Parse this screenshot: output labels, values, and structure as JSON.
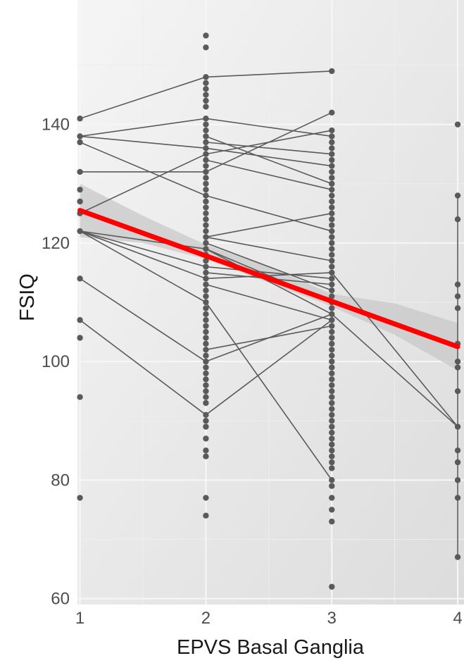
{
  "chart_data": {
    "type": "scatter",
    "title": "",
    "xlabel": "EPVS Basal Ganglia",
    "ylabel": "FSIQ",
    "xlim": [
      0.98,
      4.05
    ],
    "ylim": [
      59,
      161
    ],
    "x_ticks": [
      1,
      2,
      3,
      4
    ],
    "y_ticks": [
      60,
      80,
      100,
      120,
      140
    ],
    "grid": true,
    "legend": "none",
    "colors": {
      "panel_light": "#f4f4f4",
      "panel_dark": "#dedede",
      "grid_major": "#f7f7f7",
      "grid_minor": "#eeeeee",
      "points": "#5a5a5a",
      "paths": "#5a5a5a",
      "fit_line": "#ff0000",
      "ci_band": "#c8c8c8"
    },
    "points": [
      {
        "x": 1,
        "y": 141
      },
      {
        "x": 1,
        "y": 138
      },
      {
        "x": 1,
        "y": 137
      },
      {
        "x": 1,
        "y": 132
      },
      {
        "x": 1,
        "y": 129
      },
      {
        "x": 1,
        "y": 127
      },
      {
        "x": 1,
        "y": 125
      },
      {
        "x": 1,
        "y": 122
      },
      {
        "x": 1,
        "y": 114
      },
      {
        "x": 1,
        "y": 107
      },
      {
        "x": 1,
        "y": 104
      },
      {
        "x": 1,
        "y": 94
      },
      {
        "x": 1,
        "y": 77
      },
      {
        "x": 2,
        "y": 155
      },
      {
        "x": 2,
        "y": 153
      },
      {
        "x": 2,
        "y": 148
      },
      {
        "x": 2,
        "y": 147
      },
      {
        "x": 2,
        "y": 146
      },
      {
        "x": 2,
        "y": 145
      },
      {
        "x": 2,
        "y": 144
      },
      {
        "x": 2,
        "y": 143
      },
      {
        "x": 2,
        "y": 141
      },
      {
        "x": 2,
        "y": 140
      },
      {
        "x": 2,
        "y": 139
      },
      {
        "x": 2,
        "y": 138
      },
      {
        "x": 2,
        "y": 137
      },
      {
        "x": 2,
        "y": 136
      },
      {
        "x": 2,
        "y": 135
      },
      {
        "x": 2,
        "y": 134
      },
      {
        "x": 2,
        "y": 133
      },
      {
        "x": 2,
        "y": 132
      },
      {
        "x": 2,
        "y": 131
      },
      {
        "x": 2,
        "y": 130
      },
      {
        "x": 2,
        "y": 129
      },
      {
        "x": 2,
        "y": 128
      },
      {
        "x": 2,
        "y": 127
      },
      {
        "x": 2,
        "y": 126
      },
      {
        "x": 2,
        "y": 125
      },
      {
        "x": 2,
        "y": 124
      },
      {
        "x": 2,
        "y": 123
      },
      {
        "x": 2,
        "y": 122
      },
      {
        "x": 2,
        "y": 121
      },
      {
        "x": 2,
        "y": 120
      },
      {
        "x": 2,
        "y": 119
      },
      {
        "x": 2,
        "y": 118
      },
      {
        "x": 2,
        "y": 117
      },
      {
        "x": 2,
        "y": 116
      },
      {
        "x": 2,
        "y": 115
      },
      {
        "x": 2,
        "y": 114
      },
      {
        "x": 2,
        "y": 113
      },
      {
        "x": 2,
        "y": 112
      },
      {
        "x": 2,
        "y": 111
      },
      {
        "x": 2,
        "y": 110
      },
      {
        "x": 2,
        "y": 109
      },
      {
        "x": 2,
        "y": 108
      },
      {
        "x": 2,
        "y": 107
      },
      {
        "x": 2,
        "y": 106
      },
      {
        "x": 2,
        "y": 105
      },
      {
        "x": 2,
        "y": 104
      },
      {
        "x": 2,
        "y": 103
      },
      {
        "x": 2,
        "y": 102
      },
      {
        "x": 2,
        "y": 101
      },
      {
        "x": 2,
        "y": 100
      },
      {
        "x": 2,
        "y": 99
      },
      {
        "x": 2,
        "y": 98
      },
      {
        "x": 2,
        "y": 97
      },
      {
        "x": 2,
        "y": 96
      },
      {
        "x": 2,
        "y": 95
      },
      {
        "x": 2,
        "y": 94
      },
      {
        "x": 2,
        "y": 93
      },
      {
        "x": 2,
        "y": 91
      },
      {
        "x": 2,
        "y": 90
      },
      {
        "x": 2,
        "y": 89
      },
      {
        "x": 2,
        "y": 87
      },
      {
        "x": 2,
        "y": 85
      },
      {
        "x": 2,
        "y": 84
      },
      {
        "x": 2,
        "y": 77
      },
      {
        "x": 2,
        "y": 74
      },
      {
        "x": 3,
        "y": 149
      },
      {
        "x": 3,
        "y": 142
      },
      {
        "x": 3,
        "y": 139
      },
      {
        "x": 3,
        "y": 138
      },
      {
        "x": 3,
        "y": 137
      },
      {
        "x": 3,
        "y": 136
      },
      {
        "x": 3,
        "y": 135
      },
      {
        "x": 3,
        "y": 134
      },
      {
        "x": 3,
        "y": 133
      },
      {
        "x": 3,
        "y": 132
      },
      {
        "x": 3,
        "y": 131
      },
      {
        "x": 3,
        "y": 130
      },
      {
        "x": 3,
        "y": 129
      },
      {
        "x": 3,
        "y": 128
      },
      {
        "x": 3,
        "y": 127
      },
      {
        "x": 3,
        "y": 126
      },
      {
        "x": 3,
        "y": 125
      },
      {
        "x": 3,
        "y": 124
      },
      {
        "x": 3,
        "y": 123
      },
      {
        "x": 3,
        "y": 122
      },
      {
        "x": 3,
        "y": 121
      },
      {
        "x": 3,
        "y": 120
      },
      {
        "x": 3,
        "y": 119
      },
      {
        "x": 3,
        "y": 118
      },
      {
        "x": 3,
        "y": 117
      },
      {
        "x": 3,
        "y": 116
      },
      {
        "x": 3,
        "y": 115
      },
      {
        "x": 3,
        "y": 114
      },
      {
        "x": 3,
        "y": 113
      },
      {
        "x": 3,
        "y": 112
      },
      {
        "x": 3,
        "y": 111
      },
      {
        "x": 3,
        "y": 110
      },
      {
        "x": 3,
        "y": 109
      },
      {
        "x": 3,
        "y": 108
      },
      {
        "x": 3,
        "y": 107
      },
      {
        "x": 3,
        "y": 106
      },
      {
        "x": 3,
        "y": 105
      },
      {
        "x": 3,
        "y": 104
      },
      {
        "x": 3,
        "y": 103
      },
      {
        "x": 3,
        "y": 102
      },
      {
        "x": 3,
        "y": 101
      },
      {
        "x": 3,
        "y": 100
      },
      {
        "x": 3,
        "y": 99
      },
      {
        "x": 3,
        "y": 98
      },
      {
        "x": 3,
        "y": 97
      },
      {
        "x": 3,
        "y": 96
      },
      {
        "x": 3,
        "y": 95
      },
      {
        "x": 3,
        "y": 94
      },
      {
        "x": 3,
        "y": 93
      },
      {
        "x": 3,
        "y": 92
      },
      {
        "x": 3,
        "y": 91
      },
      {
        "x": 3,
        "y": 90
      },
      {
        "x": 3,
        "y": 89
      },
      {
        "x": 3,
        "y": 88
      },
      {
        "x": 3,
        "y": 87
      },
      {
        "x": 3,
        "y": 86
      },
      {
        "x": 3,
        "y": 85
      },
      {
        "x": 3,
        "y": 84
      },
      {
        "x": 3,
        "y": 83
      },
      {
        "x": 3,
        "y": 82
      },
      {
        "x": 3,
        "y": 80
      },
      {
        "x": 3,
        "y": 79
      },
      {
        "x": 3,
        "y": 77
      },
      {
        "x": 3,
        "y": 75
      },
      {
        "x": 3,
        "y": 73
      },
      {
        "x": 3,
        "y": 62
      },
      {
        "x": 4,
        "y": 140
      },
      {
        "x": 4,
        "y": 128
      },
      {
        "x": 4,
        "y": 124
      },
      {
        "x": 4,
        "y": 113
      },
      {
        "x": 4,
        "y": 111
      },
      {
        "x": 4,
        "y": 109
      },
      {
        "x": 4,
        "y": 103
      },
      {
        "x": 4,
        "y": 100
      },
      {
        "x": 4,
        "y": 99
      },
      {
        "x": 4,
        "y": 95
      },
      {
        "x": 4,
        "y": 89
      },
      {
        "x": 4,
        "y": 85
      },
      {
        "x": 4,
        "y": 83
      },
      {
        "x": 4,
        "y": 80
      },
      {
        "x": 4,
        "y": 77
      },
      {
        "x": 4,
        "y": 67
      }
    ],
    "paths": [
      [
        [
          1,
          141
        ],
        [
          2,
          148
        ],
        [
          3,
          149
        ]
      ],
      [
        [
          1,
          138
        ],
        [
          2,
          141
        ],
        [
          3,
          138
        ]
      ],
      [
        [
          1,
          137
        ],
        [
          2,
          128
        ],
        [
          3,
          122
        ]
      ],
      [
        [
          1,
          132
        ],
        [
          2,
          132
        ],
        [
          3,
          142
        ]
      ],
      [
        [
          1,
          125
        ],
        [
          2,
          135
        ],
        [
          3,
          139
        ]
      ],
      [
        [
          1,
          122
        ],
        [
          2,
          119
        ],
        [
          3,
          110
        ]
      ],
      [
        [
          1,
          122
        ],
        [
          2,
          116
        ],
        [
          3,
          114
        ]
      ],
      [
        [
          1,
          122
        ],
        [
          2,
          114
        ],
        [
          3,
          115
        ]
      ],
      [
        [
          1,
          122
        ],
        [
          2,
          110
        ],
        [
          3,
          80
        ]
      ],
      [
        [
          1,
          114
        ],
        [
          2,
          100
        ],
        [
          3,
          108
        ]
      ],
      [
        [
          1,
          107
        ],
        [
          2,
          91
        ],
        [
          3,
          107
        ]
      ],
      [
        [
          1,
          138
        ],
        [
          2,
          136
        ],
        [
          3,
          133
        ]
      ],
      [
        [
          2,
          138
        ],
        [
          3,
          130
        ]
      ],
      [
        [
          2,
          137
        ],
        [
          3,
          135
        ]
      ],
      [
        [
          2,
          134
        ],
        [
          3,
          129
        ]
      ],
      [
        [
          2,
          121
        ],
        [
          3,
          125
        ]
      ],
      [
        [
          2,
          121
        ],
        [
          3,
          117
        ]
      ],
      [
        [
          2,
          120
        ],
        [
          3,
          112
        ]
      ],
      [
        [
          2,
          118
        ],
        [
          3,
          110
        ]
      ],
      [
        [
          2,
          115
        ],
        [
          3,
          113
        ]
      ],
      [
        [
          2,
          113
        ],
        [
          3,
          107
        ]
      ],
      [
        [
          2,
          102
        ],
        [
          3,
          106
        ]
      ],
      [
        [
          2,
          119
        ],
        [
          3,
          108
        ],
        [
          4,
          89
        ]
      ],
      [
        [
          3,
          115
        ],
        [
          4,
          89
        ]
      ],
      [
        [
          4,
          128
        ],
        [
          4,
          67
        ]
      ]
    ],
    "fit_line": {
      "x": [
        1,
        4
      ],
      "y": [
        125.5,
        102.5
      ]
    },
    "ci_band": {
      "x": [
        1,
        1.5,
        2,
        2.5,
        3,
        3.5,
        4
      ],
      "lower": [
        121.0,
        120.0,
        117.3,
        113.3,
        109.3,
        104.5,
        98.5
      ],
      "upper": [
        130.0,
        124.6,
        119.7,
        116.0,
        111.4,
        109.8,
        106.5
      ]
    }
  }
}
